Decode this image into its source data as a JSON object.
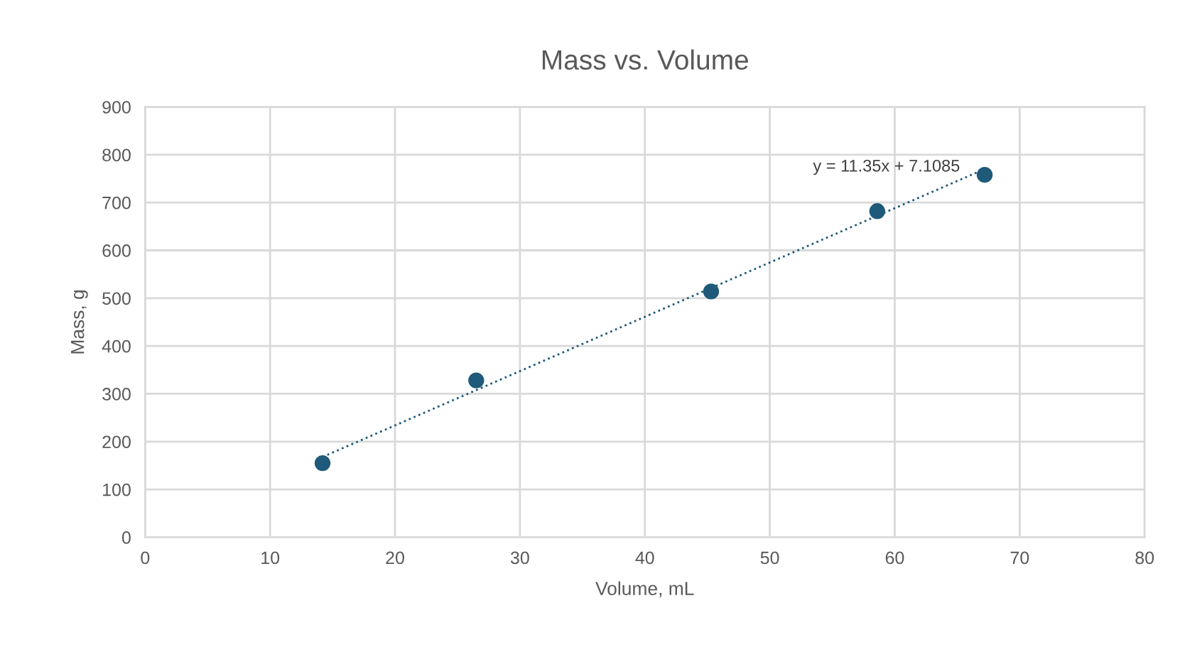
{
  "chart_data": {
    "type": "scatter",
    "title": "Mass vs. Volume",
    "xlabel": "Volume, mL",
    "ylabel": "Mass, g",
    "series": [
      {
        "color": "#1f5a7a",
        "x": [
          14.2,
          26.5,
          45.3,
          58.6,
          67.2
        ],
        "values": [
          155,
          328,
          514,
          682,
          758
        ],
        "marker": "circle"
      },
      {
        "type": "line",
        "color": "#1f5a7a",
        "x": [
          14.2,
          67.2
        ],
        "values": [
          168,
          770
        ],
        "line_style": "dotted"
      }
    ],
    "annotations": [
      {
        "text": "y = 11.35x + 7.1085",
        "x": 67.2,
        "y": 770
      }
    ],
    "xlim": [
      0,
      80
    ],
    "xticks": [
      0,
      10,
      20,
      30,
      40,
      50,
      60,
      70,
      80
    ],
    "ylim": [
      0,
      900
    ],
    "yticks": [
      0,
      100,
      200,
      300,
      400,
      500,
      600,
      700,
      800,
      900
    ],
    "grid": true,
    "legend": false
  }
}
